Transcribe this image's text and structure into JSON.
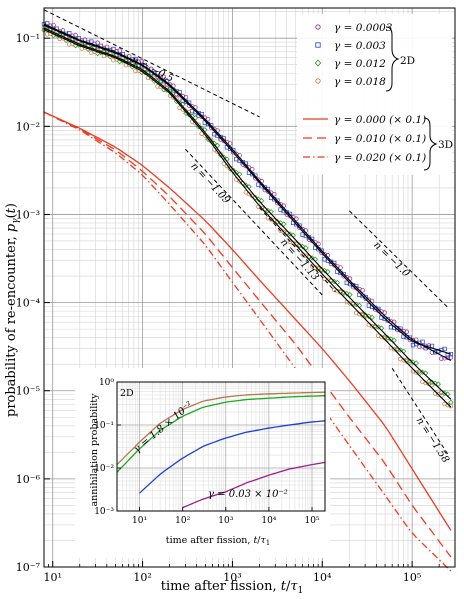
{
  "chart_data": [
    {
      "type": "line",
      "xlabel": "time after fission, t/τ1",
      "ylabel": "probability of re-encounter, pγ(t)",
      "xscale": "log",
      "yscale": "log",
      "xlim": [
        8,
        300000
      ],
      "ylim": [
        1e-07,
        0.22
      ],
      "x_ticks": [
        10,
        100,
        1000,
        10000,
        100000
      ],
      "x_tick_labels": [
        "10¹",
        "10²",
        "10³",
        "10⁴",
        "10⁵"
      ],
      "y_ticks": [
        1e-07,
        1e-06,
        1e-05,
        0.0001,
        0.001,
        0.01,
        0.1
      ],
      "y_tick_labels": [
        "10⁻⁷",
        "10⁻⁶",
        "10⁻⁵",
        "10⁻⁴",
        "10⁻³",
        "10⁻²",
        "10⁻¹"
      ],
      "grid": true,
      "legend_position": "top-right",
      "legend_groups": [
        {
          "label": "2D",
          "entries": [
            "γ = 0.0003",
            "γ = 0.003",
            "γ = 0.012",
            "γ = 0.018"
          ]
        },
        {
          "label": "3D",
          "entries": [
            "γ = 0.000 (× 0.1)",
            "γ = 0.010 (× 0.1)",
            "γ = 0.020 (× 0.1)"
          ]
        }
      ],
      "series": [
        {
          "name": "γ = 0.0003",
          "style": "markers-circle",
          "color": "#9b1f8f",
          "group": "2D",
          "x": [
            8,
            20,
            50,
            100,
            200,
            500,
            1000,
            2000,
            5000,
            10000,
            20000,
            50000,
            100000,
            270000
          ],
          "y": [
            0.145,
            0.095,
            0.07,
            0.05,
            0.03,
            0.012,
            0.0055,
            0.0024,
            0.00085,
            0.00038,
            0.00018,
            7e-05,
            3.8e-05,
            2.2e-05
          ]
        },
        {
          "name": "γ = 0.003",
          "style": "markers-square",
          "color": "#1d3fd6",
          "group": "2D",
          "x": [
            8,
            20,
            50,
            100,
            200,
            500,
            1000,
            2000,
            5000,
            10000,
            20000,
            50000,
            100000,
            270000
          ],
          "y": [
            0.14,
            0.093,
            0.068,
            0.049,
            0.029,
            0.0115,
            0.0052,
            0.0023,
            0.0008,
            0.00036,
            0.00017,
            6.5e-05,
            3.6e-05,
            2.6e-05
          ]
        },
        {
          "name": "γ = 0.012",
          "style": "markers-diamond",
          "color": "#1a9a1a",
          "group": "2D",
          "x": [
            8,
            20,
            50,
            100,
            200,
            500,
            1000,
            2000,
            5000,
            10000,
            20000,
            50000,
            100000,
            270000
          ],
          "y": [
            0.13,
            0.085,
            0.062,
            0.044,
            0.025,
            0.0085,
            0.0033,
            0.0014,
            0.00052,
            0.00024,
            0.000115,
            4.4e-05,
            2.1e-05,
            8e-06
          ]
        },
        {
          "name": "γ = 0.018",
          "style": "markers-circle",
          "color": "#c47a35",
          "group": "2D",
          "x": [
            8,
            20,
            50,
            100,
            200,
            500,
            1000,
            2000,
            5000,
            10000,
            20000,
            50000,
            100000,
            270000
          ],
          "y": [
            0.125,
            0.082,
            0.06,
            0.042,
            0.024,
            0.008,
            0.003,
            0.00125,
            0.00046,
            0.00021,
            0.0001,
            3.8e-05,
            1.8e-05,
            6.5e-06
          ]
        },
        {
          "name": "γ = 0.000 (× 0.1)",
          "style": "solid",
          "color": "#ee3b1f",
          "group": "3D",
          "x": [
            8,
            20,
            50,
            100,
            200,
            500,
            1000,
            2000,
            5000,
            10000,
            20000,
            50000,
            100000,
            270000
          ],
          "y": [
            0.0145,
            0.0095,
            0.0058,
            0.0036,
            0.002,
            0.00085,
            0.0004,
            0.00018,
            6.5e-05,
            3e-05,
            1.3e-05,
            4e-06,
            1.3e-06,
            2.6e-07
          ]
        },
        {
          "name": "γ = 0.010 (× 0.1)",
          "style": "dashed",
          "color": "#ee3b1f",
          "group": "3D",
          "x": [
            8,
            20,
            50,
            100,
            200,
            500,
            1000,
            2000,
            5000,
            10000,
            20000,
            50000,
            100000,
            270000
          ],
          "y": [
            0.0145,
            0.0093,
            0.0054,
            0.0031,
            0.0016,
            0.0006,
            0.00025,
            0.000105,
            3.4e-05,
            1.3e-05,
            5e-06,
            1.5e-06,
            5e-07,
            1.3e-07
          ]
        },
        {
          "name": "γ = 0.020 (× 0.1)",
          "style": "dashdot",
          "color": "#ee3b1f",
          "group": "3D",
          "x": [
            8,
            20,
            50,
            100,
            200,
            500,
            1000,
            2000,
            5000,
            10000,
            20000,
            50000,
            100000,
            270000
          ],
          "y": [
            0.0145,
            0.0091,
            0.005,
            0.0028,
            0.0013,
            0.00045,
            0.00017,
            6.5e-05,
            1.8e-05,
            6.5e-06,
            2.4e-06,
            6.5e-07,
            2.4e-07,
            9e-08
          ]
        }
      ],
      "black_curves": [
        {
          "x": [
            8,
            20,
            50,
            100,
            200,
            500,
            1000,
            2000,
            5000,
            10000,
            20000,
            50000,
            100000,
            270000
          ],
          "y": [
            0.145,
            0.095,
            0.07,
            0.05,
            0.03,
            0.012,
            0.0055,
            0.0024,
            0.00085,
            0.00038,
            0.00018,
            7e-05,
            3.8e-05,
            2.2e-05
          ]
        },
        {
          "x": [
            8,
            20,
            50,
            100,
            200,
            500,
            1000,
            2000,
            5000,
            10000,
            20000,
            50000,
            100000,
            270000
          ],
          "y": [
            0.14,
            0.093,
            0.068,
            0.049,
            0.029,
            0.0115,
            0.0052,
            0.0023,
            0.0008,
            0.00036,
            0.00017,
            6.5e-05,
            3.6e-05,
            2.6e-05
          ]
        },
        {
          "x": [
            8,
            20,
            50,
            100,
            200,
            500,
            1000,
            2000,
            5000,
            10000,
            20000,
            50000,
            100000,
            270000
          ],
          "y": [
            0.13,
            0.085,
            0.062,
            0.044,
            0.025,
            0.0085,
            0.0033,
            0.0014,
            0.00052,
            0.00024,
            0.000115,
            4.4e-05,
            2.1e-05,
            8e-06
          ]
        },
        {
          "x": [
            8,
            20,
            50,
            100,
            200,
            500,
            1000,
            2000,
            5000,
            10000,
            20000,
            50000,
            100000,
            270000
          ],
          "y": [
            0.125,
            0.082,
            0.06,
            0.042,
            0.024,
            0.008,
            0.003,
            0.00125,
            0.00046,
            0.00021,
            0.0001,
            3.8e-05,
            1.8e-05,
            6.5e-06
          ]
        }
      ],
      "power_law_guides": [
        {
          "label": "n = −0.5",
          "x": [
            8,
            2000
          ],
          "y": [
            0.21,
            0.0128
          ]
        },
        {
          "label": "n = −1.09",
          "x": [
            300,
            10000
          ],
          "y": [
            0.0055,
            0.000122
          ]
        },
        {
          "label": "n = −1.13",
          "x": [
            2000,
            14000
          ],
          "y": [
            0.0012,
            0.000133
          ]
        },
        {
          "label": "n = −1.0",
          "x": [
            20000,
            250000
          ],
          "y": [
            0.0011,
            8.8e-05
          ]
        },
        {
          "label": "n = −1.58",
          "x": [
            60000,
            250000
          ],
          "y": [
            1.8e-05,
            1.9e-06
          ]
        }
      ]
    },
    {
      "type": "line",
      "label": "2D",
      "xlabel": "time after fission, t/τ1",
      "ylabel": "annihilation probability",
      "xscale": "log",
      "yscale": "log",
      "xlim": [
        3,
        200000
      ],
      "ylim": [
        0.001,
        1.0
      ],
      "x_ticks": [
        10,
        100,
        1000,
        10000,
        100000
      ],
      "x_tick_labels": [
        "10¹",
        "10²",
        "10³",
        "10⁴",
        "10⁵"
      ],
      "y_ticks": [
        0.001,
        0.01,
        0.1,
        1.0
      ],
      "y_tick_labels": [
        "10⁻³",
        "10⁻²",
        "10⁻¹",
        "10⁰"
      ],
      "annotations": [
        "γ = 1.8 × 10⁻²",
        "γ = 0.03 × 10⁻²"
      ],
      "series": [
        {
          "color": "#b07a4a",
          "x": [
            3,
            10,
            30,
            100,
            300,
            1000,
            3000,
            10000,
            30000,
            100000,
            200000
          ],
          "y": [
            0.012,
            0.04,
            0.11,
            0.23,
            0.36,
            0.45,
            0.5,
            0.53,
            0.55,
            0.57,
            0.58
          ]
        },
        {
          "color": "#1aaa1a",
          "x": [
            3,
            10,
            30,
            100,
            300,
            1000,
            3000,
            10000,
            30000,
            100000,
            200000
          ],
          "y": [
            0.008,
            0.028,
            0.075,
            0.16,
            0.26,
            0.34,
            0.39,
            0.42,
            0.45,
            0.47,
            0.48
          ]
        },
        {
          "color": "#1d3fd6",
          "x": [
            3,
            10,
            30,
            100,
            300,
            1000,
            3000,
            10000,
            30000,
            100000,
            200000
          ],
          "y": [
            0.0007,
            0.0026,
            0.0072,
            0.017,
            0.032,
            0.05,
            0.068,
            0.085,
            0.1,
            0.118,
            0.125
          ]
        },
        {
          "color": "#9b1f8f",
          "x": [
            40,
            100,
            300,
            1000,
            3000,
            10000,
            30000,
            100000,
            200000
          ],
          "y": [
            0.0008,
            0.0012,
            0.0019,
            0.0028,
            0.0045,
            0.0068,
            0.0095,
            0.012,
            0.0135
          ]
        }
      ]
    }
  ]
}
